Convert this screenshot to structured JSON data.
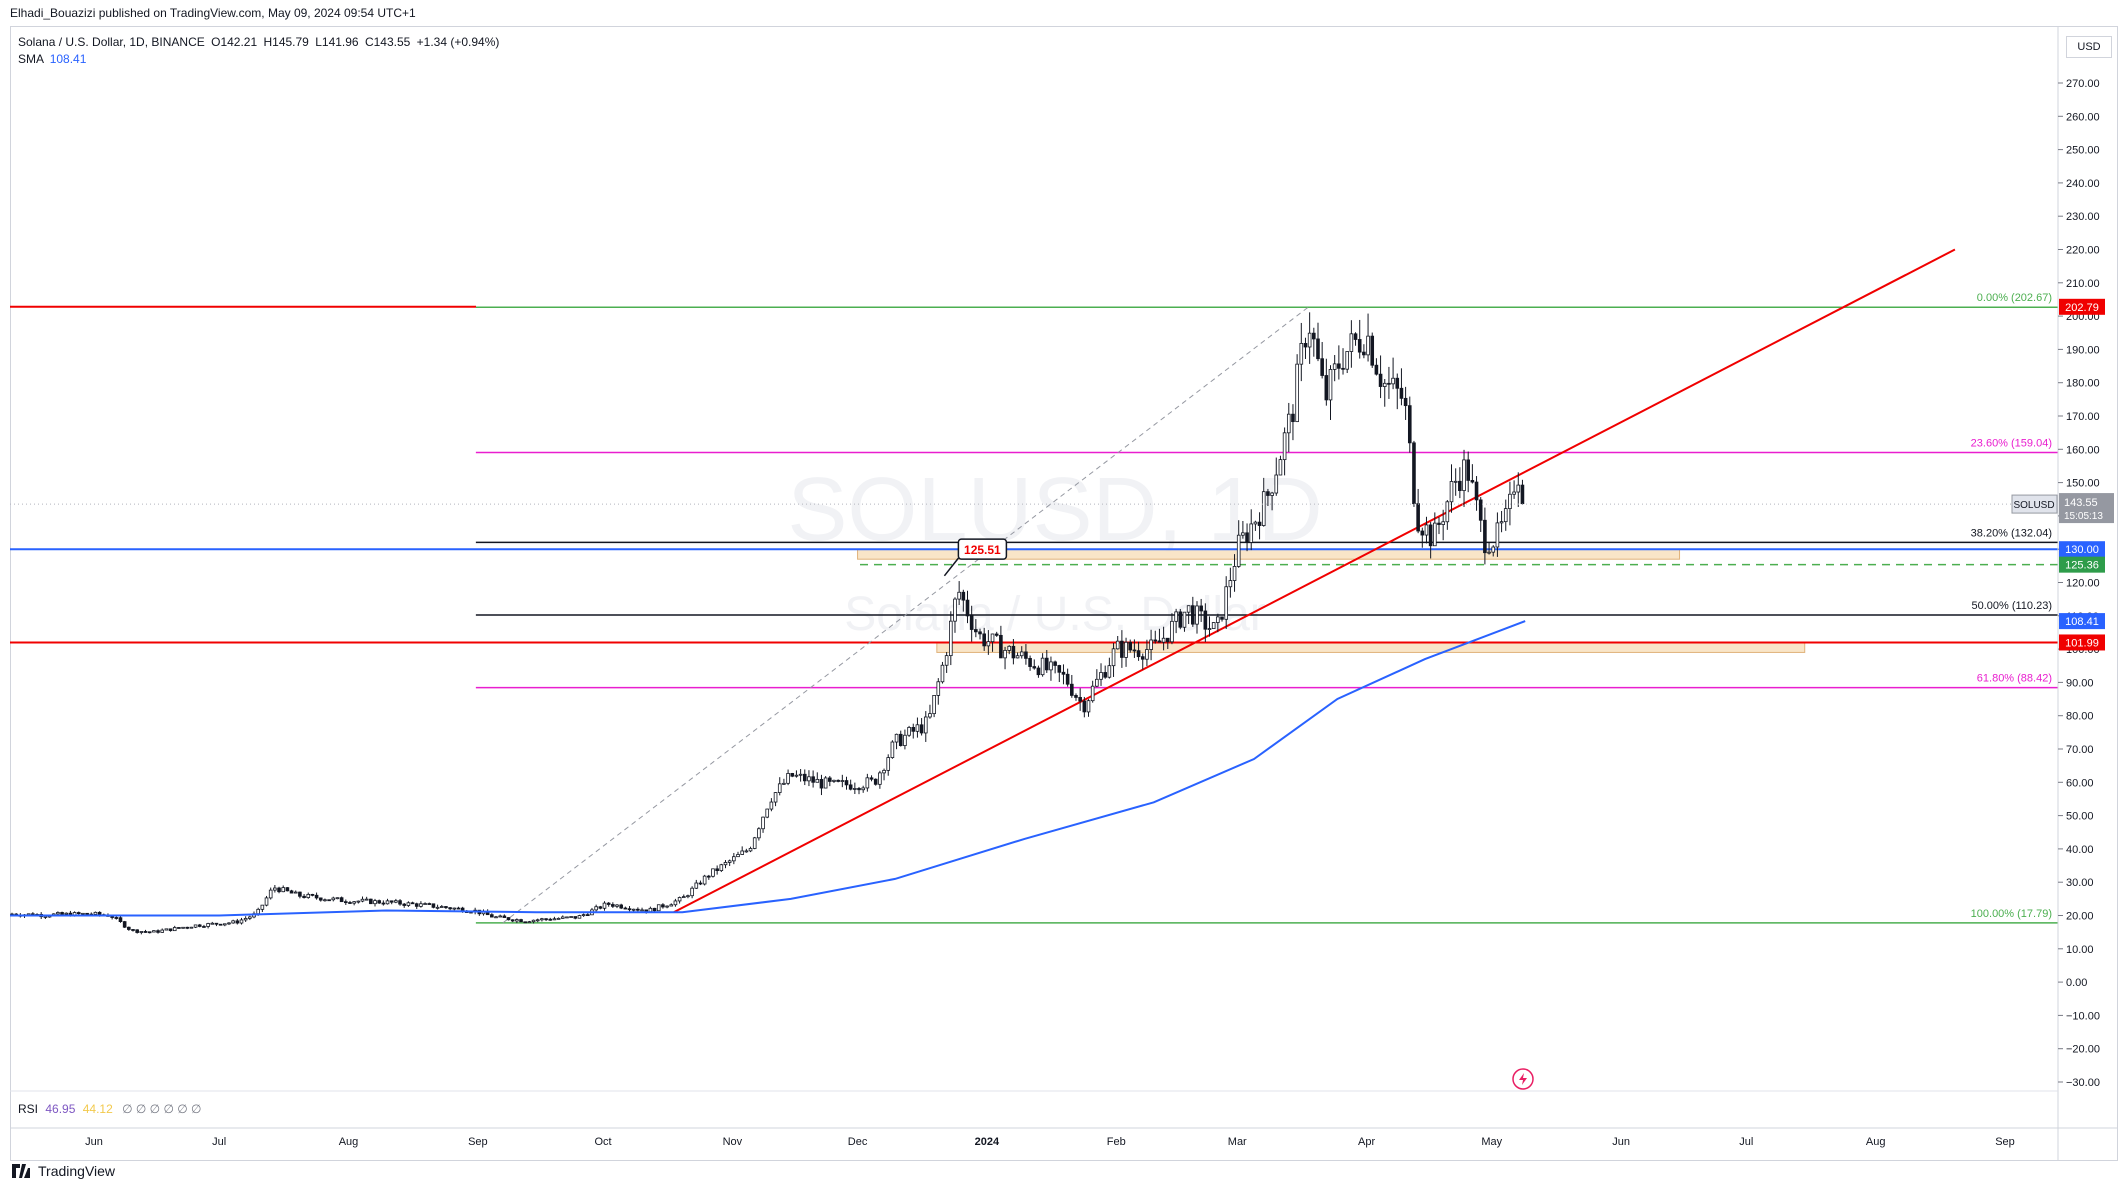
{
  "header": "Elhadi_Bouazizi published on TradingView.com, May 09, 2024 09:54 UTC+1",
  "legend": {
    "symbol": "Solana / U.S. Dollar, 1D, BINANCE",
    "o_label": "O",
    "o": "142.21",
    "h_label": "H",
    "h": "145.79",
    "l_label": "L",
    "l": "141.96",
    "c_label": "C",
    "c": "143.55",
    "change": "+1.34 (+0.94%)",
    "sma_label": "SMA",
    "sma": "108.41"
  },
  "rsi_legend": {
    "label": "RSI",
    "v1": "46.95",
    "v2": "44.12",
    "icons": "∅ ∅ ∅ ∅ ∅ ∅"
  },
  "currency": "USD",
  "watermark": {
    "main": "SOLUSD, 1D",
    "sub": "Solana / U.S. Dollar"
  },
  "footer": "TradingView",
  "chart_data": {
    "type": "candlestick",
    "price_axis": [
      "270.00",
      "260.00",
      "250.00",
      "240.00",
      "230.00",
      "220.00",
      "210.00",
      "200.00",
      "190.00",
      "180.00",
      "170.00",
      "160.00",
      "150.00",
      "140.00",
      "130.00",
      "120.00",
      "110.00",
      "100.00",
      "90.00",
      "80.00",
      "70.00",
      "60.00",
      "50.00",
      "40.00",
      "30.00",
      "20.00",
      "10.00",
      "0.00",
      "−10.00",
      "−20.00",
      "−30.00"
    ],
    "price_range": [
      -35,
      280
    ],
    "time_axis": [
      "Jun",
      "Jul",
      "Aug",
      "Sep",
      "Oct",
      "Nov",
      "Dec",
      "2024",
      "Feb",
      "Mar",
      "Apr",
      "May",
      "Jun",
      "Jul",
      "Aug",
      "Sep"
    ],
    "fib_levels": [
      {
        "label": "0.00% (202.67)",
        "value": 202.67,
        "color": "#4caf50"
      },
      {
        "label": "23.60% (159.04)",
        "value": 159.04,
        "color": "#e91ecf"
      },
      {
        "label": "38.20% (132.04)",
        "value": 132.04,
        "color": "#131722"
      },
      {
        "label": "50.00% (110.23)",
        "value": 110.23,
        "color": "#131722"
      },
      {
        "label": "61.80% (88.42)",
        "value": 88.42,
        "color": "#e91ecf"
      },
      {
        "label": "100.00% (17.79)",
        "value": 17.79,
        "color": "#4caf50"
      }
    ],
    "horizontal_lines": [
      {
        "value": 202.79,
        "color": "#f00000"
      },
      {
        "value": 130.0,
        "color": "#2962ff"
      },
      {
        "value": 101.99,
        "color": "#f00000"
      },
      {
        "value": 125.36,
        "color": "#4caf50",
        "dashed": true
      }
    ],
    "price_tags": [
      {
        "label": "202.79",
        "value": 202.79,
        "color": "#f00000"
      },
      {
        "label": "130.00",
        "value": 130.0,
        "color": "#2962ff"
      },
      {
        "label": "125.36",
        "value": 125.36,
        "color": "#2e9c4a"
      },
      {
        "label": "108.41",
        "value": 108.41,
        "color": "#2962ff"
      },
      {
        "label": "101.99",
        "value": 101.99,
        "color": "#f00000"
      }
    ],
    "last_price": {
      "symbol": "SOLUSD",
      "price": "143.55",
      "countdown": "15:05:13",
      "value": 143.55
    },
    "callout": {
      "label": "125.51",
      "value": 125.51
    },
    "close_path": [
      {
        "t": "2023-05-10",
        "c": 20.5
      },
      {
        "t": "2023-05-20",
        "c": 20.2
      },
      {
        "t": "2023-05-31",
        "c": 20.5
      },
      {
        "t": "2023-06-05",
        "c": 20.0
      },
      {
        "t": "2023-06-10",
        "c": 15.5
      },
      {
        "t": "2023-06-15",
        "c": 15.0
      },
      {
        "t": "2023-06-25",
        "c": 17.0
      },
      {
        "t": "2023-07-05",
        "c": 18.0
      },
      {
        "t": "2023-07-10",
        "c": 20.5
      },
      {
        "t": "2023-07-14",
        "c": 28.5
      },
      {
        "t": "2023-07-20",
        "c": 26.0
      },
      {
        "t": "2023-07-31",
        "c": 24.5
      },
      {
        "t": "2023-08-10",
        "c": 24.0
      },
      {
        "t": "2023-08-20",
        "c": 23.0
      },
      {
        "t": "2023-08-31",
        "c": 21.5
      },
      {
        "t": "2023-09-05",
        "c": 19.5
      },
      {
        "t": "2023-09-12",
        "c": 18.5
      },
      {
        "t": "2023-09-25",
        "c": 19.5
      },
      {
        "t": "2023-10-02",
        "c": 23.5
      },
      {
        "t": "2023-10-12",
        "c": 21.5
      },
      {
        "t": "2023-10-20",
        "c": 25.0
      },
      {
        "t": "2023-10-26",
        "c": 32.0
      },
      {
        "t": "2023-11-05",
        "c": 40.0
      },
      {
        "t": "2023-11-10",
        "c": 55.0
      },
      {
        "t": "2023-11-15",
        "c": 62.0
      },
      {
        "t": "2023-11-25",
        "c": 59.0
      },
      {
        "t": "2023-12-05",
        "c": 60.0
      },
      {
        "t": "2023-12-10",
        "c": 72.0
      },
      {
        "t": "2023-12-18",
        "c": 78.0
      },
      {
        "t": "2023-12-22",
        "c": 98.0
      },
      {
        "t": "2023-12-25",
        "c": 118.0
      },
      {
        "t": "2023-12-30",
        "c": 104.0
      },
      {
        "t": "2024-01-05",
        "c": 100.0
      },
      {
        "t": "2024-01-12",
        "c": 96.0
      },
      {
        "t": "2024-01-20",
        "c": 91.0
      },
      {
        "t": "2024-01-24",
        "c": 83.0
      },
      {
        "t": "2024-02-01",
        "c": 100.0
      },
      {
        "t": "2024-02-10",
        "c": 100.0
      },
      {
        "t": "2024-02-18",
        "c": 112.0
      },
      {
        "t": "2024-02-25",
        "c": 105.0
      },
      {
        "t": "2024-03-01",
        "c": 130.0
      },
      {
        "t": "2024-03-08",
        "c": 145.0
      },
      {
        "t": "2024-03-14",
        "c": 170.0
      },
      {
        "t": "2024-03-18",
        "c": 200.0
      },
      {
        "t": "2024-03-22",
        "c": 175.0
      },
      {
        "t": "2024-03-26",
        "c": 188.0
      },
      {
        "t": "2024-04-01",
        "c": 195.0
      },
      {
        "t": "2024-04-05",
        "c": 180.0
      },
      {
        "t": "2024-04-10",
        "c": 175.0
      },
      {
        "t": "2024-04-13",
        "c": 140.0
      },
      {
        "t": "2024-04-17",
        "c": 133.0
      },
      {
        "t": "2024-04-22",
        "c": 150.0
      },
      {
        "t": "2024-04-25",
        "c": 155.0
      },
      {
        "t": "2024-04-29",
        "c": 133.0
      },
      {
        "t": "2024-05-02",
        "c": 133.0
      },
      {
        "t": "2024-05-05",
        "c": 140.0
      },
      {
        "t": "2024-05-07",
        "c": 155.0
      },
      {
        "t": "2024-05-09",
        "c": 143.55
      }
    ],
    "sma_path": [
      {
        "t": "2023-05-10",
        "v": 20.0
      },
      {
        "t": "2023-07-01",
        "v": 20.0
      },
      {
        "t": "2023-08-10",
        "v": 21.5
      },
      {
        "t": "2023-09-15",
        "v": 21.0
      },
      {
        "t": "2023-10-20",
        "v": 21.0
      },
      {
        "t": "2023-11-15",
        "v": 25.0
      },
      {
        "t": "2023-12-10",
        "v": 31.0
      },
      {
        "t": "2024-01-10",
        "v": 43.0
      },
      {
        "t": "2024-02-10",
        "v": 54.0
      },
      {
        "t": "2024-03-05",
        "v": 67.0
      },
      {
        "t": "2024-03-25",
        "v": 85.0
      },
      {
        "t": "2024-04-15",
        "v": 97.0
      },
      {
        "t": "2024-05-09",
        "v": 108.41
      }
    ],
    "trendline": {
      "from": {
        "t": "2023-10-18",
        "v": 21.0
      },
      "to": {
        "t": "2024-08-20",
        "v": 220.0
      }
    },
    "fib_anchor_line": {
      "from": {
        "t": "2023-09-07",
        "v": 17.79
      },
      "to": {
        "t": "2024-03-18",
        "v": 202.67
      }
    },
    "zones": [
      {
        "from": "2023-12-01",
        "to": "2024-06-15",
        "low": 127.0,
        "high": 130.0
      },
      {
        "from": "2023-12-20",
        "to": "2024-07-15",
        "low": 99.0,
        "high": 101.99
      }
    ]
  }
}
